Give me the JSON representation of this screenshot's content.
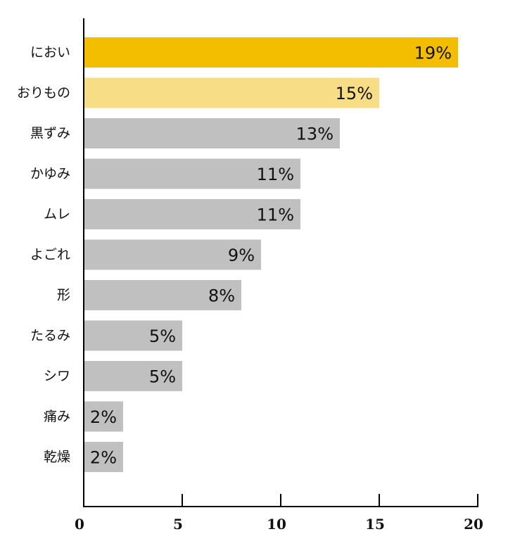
{
  "chart_data": {
    "type": "bar",
    "orientation": "horizontal",
    "categories": [
      "におい",
      "おりもの",
      "黒ずみ",
      "かゆみ",
      "ムレ",
      "よごれ",
      "形",
      "たるみ",
      "シワ",
      "痛み",
      "乾燥"
    ],
    "values": [
      19,
      15,
      13,
      11,
      11,
      9,
      8,
      5,
      5,
      2,
      2
    ],
    "data_labels": [
      "19%",
      "15%",
      "13%",
      "11%",
      "11%",
      "9%",
      "8%",
      "5%",
      "5%",
      "2%",
      "2%"
    ],
    "bar_colors": [
      "#f3bd00",
      "#f7dd85",
      "#c0c0c0",
      "#c0c0c0",
      "#c0c0c0",
      "#c0c0c0",
      "#c0c0c0",
      "#c0c0c0",
      "#c0c0c0",
      "#c0c0c0",
      "#c0c0c0"
    ],
    "xlim": [
      0,
      20
    ],
    "x_ticks": [
      0,
      5,
      10,
      15,
      20
    ],
    "x_tick_labels": [
      "0",
      "5",
      "10",
      "15",
      "20"
    ],
    "title": "",
    "xlabel": "",
    "ylabel": "",
    "grid": false,
    "legend": "none",
    "axis_color": "#000000",
    "text_color": "#111111"
  }
}
